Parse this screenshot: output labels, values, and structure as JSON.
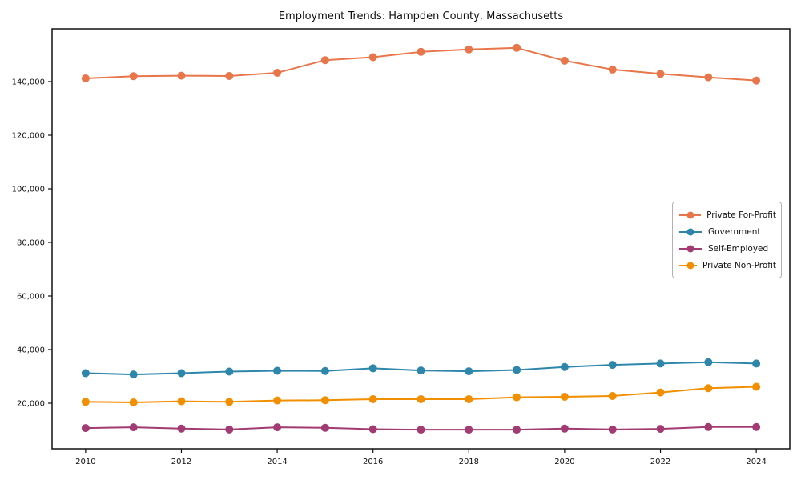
{
  "chart_data": {
    "type": "line",
    "title": "Employment Trends: Hampden County, Massachusetts",
    "xlabel": "",
    "ylabel": "",
    "x": [
      2010,
      2011,
      2012,
      2013,
      2014,
      2015,
      2016,
      2017,
      2018,
      2019,
      2020,
      2021,
      2022,
      2023,
      2024
    ],
    "series": [
      {
        "name": "Private For-Profit",
        "color": "#e8764a",
        "values": [
          141200,
          142000,
          142200,
          142100,
          143300,
          148000,
          149100,
          151100,
          152000,
          152600,
          147800,
          144500,
          142900,
          141600,
          140400
        ]
      },
      {
        "name": "Government",
        "color": "#2e86ab",
        "values": [
          31200,
          30700,
          31200,
          31800,
          32100,
          32000,
          33000,
          32200,
          31900,
          32400,
          33500,
          34300,
          34800,
          35300,
          34800
        ]
      },
      {
        "name": "Self-Employed",
        "color": "#a23b72",
        "values": [
          10700,
          11000,
          10500,
          10200,
          11000,
          10800,
          10300,
          10100,
          10100,
          10100,
          10500,
          10200,
          10400,
          11100,
          11100
        ]
      },
      {
        "name": "Private Non-Profit",
        "color": "#f18f01",
        "values": [
          20500,
          20300,
          20700,
          20500,
          21000,
          21100,
          21500,
          21500,
          21500,
          22200,
          22400,
          22700,
          24000,
          25600,
          26100
        ]
      }
    ],
    "xlim": [
      2009.3,
      2024.7
    ],
    "ylim": [
      2980,
      159700
    ],
    "x_ticks": [
      2010,
      2012,
      2014,
      2016,
      2018,
      2020,
      2022,
      2024
    ],
    "x_tick_labels": [
      "2010",
      "2012",
      "2014",
      "2016",
      "2018",
      "2020",
      "2022",
      "2024"
    ],
    "y_ticks": [
      20000,
      40000,
      60000,
      80000,
      100000,
      120000,
      140000
    ],
    "y_tick_labels": [
      "20,000",
      "40,000",
      "60,000",
      "80,000",
      "100,000",
      "120,000",
      "140,000"
    ],
    "grid": false,
    "legend_position": "center right",
    "axis_color": "#111111",
    "tick_color": "#111111",
    "marker": "circle",
    "marker_radius": 5,
    "line_width": 2
  }
}
